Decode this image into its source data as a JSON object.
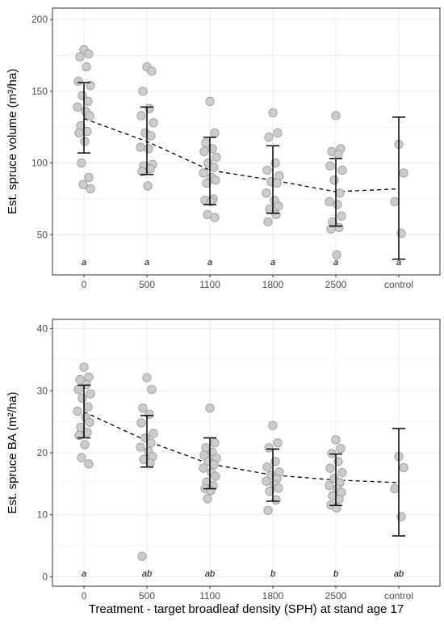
{
  "chart_data": [
    {
      "type": "scatter",
      "panel": "top",
      "ylabel": "Est. spruce volume (m³/ha)",
      "xlabel": "",
      "categories": [
        "0",
        "500",
        "1100",
        "1800",
        "2500",
        "control"
      ],
      "ylim": [
        22,
        208
      ],
      "yticks": [
        50,
        100,
        150,
        200
      ],
      "grid": true,
      "legend": "none",
      "colors": {
        "point_fill": "#cccccc",
        "point_stroke": "#9e9e9e",
        "mean_line": "#000000",
        "error_bar": "#000000",
        "panel_border": "#333333",
        "grid": "#ebebeb"
      },
      "points": [
        [
          179,
          176,
          174,
          167,
          157,
          154,
          147,
          143,
          139,
          136,
          133,
          126,
          122,
          121,
          115,
          100,
          90,
          85,
          82
        ],
        [
          167,
          164,
          150,
          138,
          133,
          128,
          121,
          119,
          111,
          110,
          99,
          98,
          96,
          94,
          84
        ],
        [
          143,
          121,
          114,
          110,
          108,
          104,
          100,
          97,
          93,
          90,
          88,
          86,
          75,
          74,
          73,
          64,
          62
        ],
        [
          135,
          121,
          118,
          100,
          95,
          91,
          87,
          86,
          79,
          74,
          70,
          68,
          64,
          59
        ],
        [
          133,
          110,
          108,
          106,
          98,
          95,
          88,
          79,
          73,
          71,
          63,
          59,
          55,
          54,
          36
        ],
        [
          113,
          93,
          73,
          51
        ]
      ],
      "mean": [
        131,
        115,
        95,
        88,
        80,
        82
      ],
      "error_low": [
        107,
        92,
        71,
        65,
        56,
        33
      ],
      "error_high": [
        156,
        139,
        118,
        112,
        103,
        132
      ],
      "significance": [
        "a",
        "a",
        "a",
        "a",
        "a",
        "a"
      ]
    },
    {
      "type": "scatter",
      "panel": "bottom",
      "ylabel": "Est. spruce BA (m²/ha)",
      "xlabel": "Treatment - target broadleaf density (SPH) at stand age 17",
      "categories": [
        "0",
        "500",
        "1100",
        "1800",
        "2500",
        "control"
      ],
      "ylim": [
        -1.5,
        41.5
      ],
      "yticks": [
        0,
        10,
        20,
        30,
        40
      ],
      "grid": true,
      "legend": "none",
      "colors": {
        "point_fill": "#cccccc",
        "point_stroke": "#9e9e9e",
        "mean_line": "#000000",
        "error_bar": "#000000",
        "panel_border": "#333333",
        "grid": "#ebebeb"
      },
      "points": [
        [
          33.8,
          32.2,
          31.8,
          31.0,
          30.2,
          29.5,
          28.8,
          27.4,
          26.7,
          25.7,
          24.9,
          24.1,
          23.3,
          22.8,
          21.3,
          19.2,
          18.2
        ],
        [
          32.1,
          30.2,
          27.2,
          26.2,
          24.8,
          23.1,
          22.4,
          21.6,
          20.9,
          20.2,
          19.4,
          18.9,
          18.3,
          3.3
        ],
        [
          27.2,
          21.6,
          20.8,
          20.1,
          19.6,
          19.1,
          18.6,
          18.1,
          17.5,
          16.8,
          16.2,
          15.3,
          14.7,
          14.2,
          13.9,
          12.6
        ],
        [
          24.4,
          21.6,
          20.8,
          18.6,
          17.7,
          16.9,
          16.4,
          15.8,
          15.4,
          14.9,
          14.3,
          13.8,
          12.4,
          10.7
        ],
        [
          22.1,
          20.7,
          19.9,
          18.6,
          17.5,
          16.8,
          15.9,
          15.2,
          14.7,
          14.2,
          13.6,
          13.1,
          12.5,
          11.6,
          11.1
        ],
        [
          19.4,
          17.6,
          14.2,
          9.7
        ]
      ],
      "mean": [
        26.6,
        21.9,
        18.2,
        16.4,
        15.6,
        15.2
      ],
      "error_low": [
        22.4,
        17.7,
        14.2,
        12.2,
        11.5,
        6.6
      ],
      "error_high": [
        30.9,
        26.0,
        22.4,
        20.6,
        19.8,
        23.9
      ],
      "significance": [
        "a",
        "ab",
        "ab",
        "b",
        "b",
        "ab"
      ]
    }
  ]
}
